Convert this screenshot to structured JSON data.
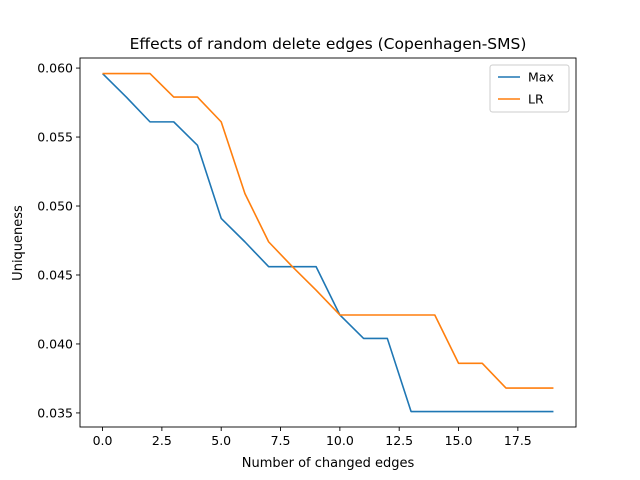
{
  "chart_data": {
    "type": "line",
    "title": "Effects of random delete edges (Copenhagen-SMS)",
    "xlabel": "Number of changed edges",
    "ylabel": "Uniqueness",
    "x": [
      0,
      1,
      2,
      3,
      4,
      5,
      6,
      7,
      8,
      9,
      10,
      11,
      12,
      13,
      14,
      15,
      16,
      17,
      18,
      19
    ],
    "xlim": [
      -0.95,
      19.95
    ],
    "ylim": [
      0.03398,
      0.06073
    ],
    "xticks": [
      0.0,
      2.5,
      5.0,
      7.5,
      10.0,
      12.5,
      15.0,
      17.5
    ],
    "xtick_labels": [
      "0.0",
      "2.5",
      "5.0",
      "7.5",
      "10.0",
      "12.5",
      "15.0",
      "17.5"
    ],
    "yticks": [
      0.035,
      0.04,
      0.045,
      0.05,
      0.055,
      0.06
    ],
    "ytick_labels": [
      "0.035",
      "0.040",
      "0.045",
      "0.050",
      "0.055",
      "0.060"
    ],
    "grid": false,
    "legend_position": "top-right",
    "series": [
      {
        "name": "Max",
        "color": "#1f77b4",
        "values": [
          0.0596,
          0.0579,
          0.0561,
          0.0561,
          0.0544,
          0.0491,
          0.0474,
          0.0456,
          0.0456,
          0.0456,
          0.0421,
          0.0404,
          0.0404,
          0.0351,
          0.0351,
          0.0351,
          0.0351,
          0.0351,
          0.0351,
          0.0351
        ]
      },
      {
        "name": "LR",
        "color": "#ff7f0e",
        "values": [
          0.0596,
          0.0596,
          0.0596,
          0.0579,
          0.0579,
          0.0561,
          0.0509,
          0.0474,
          0.0456,
          0.0439,
          0.0421,
          0.0421,
          0.0421,
          0.0421,
          0.0421,
          0.0386,
          0.0386,
          0.0368,
          0.0368,
          0.0368
        ]
      }
    ]
  }
}
